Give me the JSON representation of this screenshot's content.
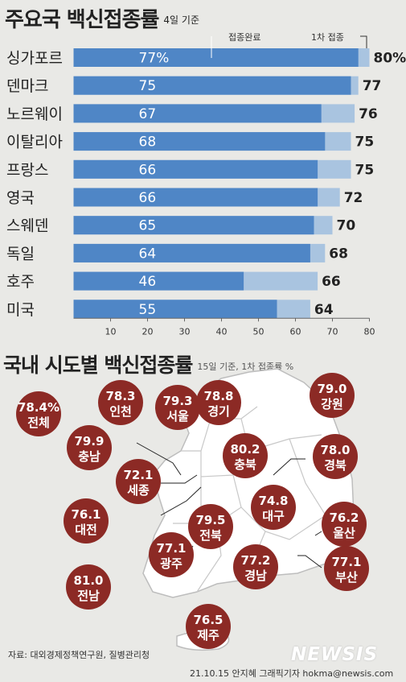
{
  "title": "주요국 백신접종률",
  "title_sub": "4일 기준",
  "title2": "국내 시도별 백신접종률",
  "title2_sub": "15일 기준, 1차 접종률 %",
  "source": "자료: 대외경제정책연구원, 질병관리청",
  "credit": "21.10.15 안지혜 그래픽기자 hokma@newsis.com",
  "logo": "NEWSIS",
  "colors": {
    "full": "#4f86c6",
    "first": "#a9c4e0",
    "bubble": "#8c2a25",
    "map_land": "#ffffff",
    "map_border": "#bdbdbd"
  },
  "chart_data": [
    {
      "type": "bar",
      "orientation": "horizontal",
      "title": "주요국 백신접종률",
      "subtitle": "4일 기준",
      "categories": [
        "싱가포르",
        "덴마크",
        "노르웨이",
        "이탈리아",
        "프랑스",
        "영국",
        "스웨덴",
        "독일",
        "호주",
        "미국"
      ],
      "series": [
        {
          "name": "접종완료",
          "values": [
            77,
            75,
            67,
            68,
            66,
            66,
            65,
            64,
            46,
            55
          ],
          "labels": [
            "77%",
            "75",
            "67",
            "68",
            "66",
            "66",
            "65",
            "64",
            "46",
            "55"
          ]
        },
        {
          "name": "1차 접종",
          "values": [
            80,
            77,
            76,
            75,
            75,
            72,
            70,
            68,
            66,
            64
          ],
          "labels": [
            "80%",
            "77",
            "76",
            "75",
            "75",
            "72",
            "70",
            "68",
            "66",
            "64"
          ]
        }
      ],
      "xlim": [
        0,
        80
      ],
      "xticks": [
        10,
        20,
        30,
        40,
        50,
        60,
        70,
        80
      ],
      "grid": false,
      "legend": "top-right"
    },
    {
      "type": "map",
      "title": "국내 시도별 백신접종률",
      "subtitle": "15일 기준, 1차 접종률 %",
      "regions": [
        {
          "name": "전체",
          "value": "78.4%"
        },
        {
          "name": "인천",
          "value": "78.3"
        },
        {
          "name": "서울",
          "value": "79.3"
        },
        {
          "name": "경기",
          "value": "78.8"
        },
        {
          "name": "강원",
          "value": "79.0"
        },
        {
          "name": "충남",
          "value": "79.9"
        },
        {
          "name": "충북",
          "value": "80.2"
        },
        {
          "name": "경북",
          "value": "78.0"
        },
        {
          "name": "세종",
          "value": "72.1"
        },
        {
          "name": "대전",
          "value": "76.1"
        },
        {
          "name": "대구",
          "value": "74.8"
        },
        {
          "name": "울산",
          "value": "76.2"
        },
        {
          "name": "전북",
          "value": "79.5"
        },
        {
          "name": "광주",
          "value": "77.1"
        },
        {
          "name": "경남",
          "value": "77.2"
        },
        {
          "name": "부산",
          "value": "77.1"
        },
        {
          "name": "전남",
          "value": "81.0"
        },
        {
          "name": "제주",
          "value": "76.5"
        }
      ]
    }
  ]
}
